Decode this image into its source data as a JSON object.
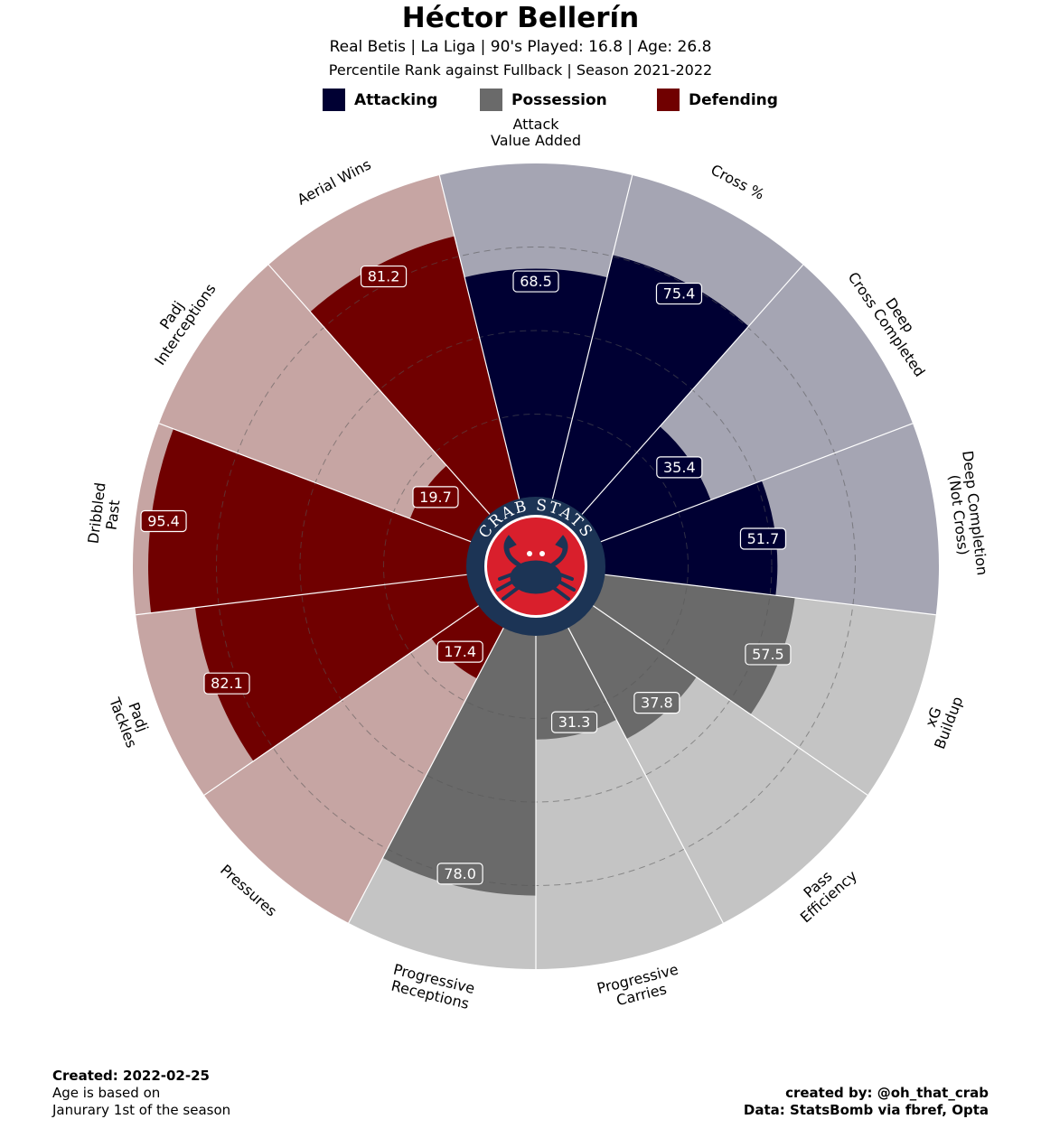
{
  "header": {
    "title": "Héctor Bellerín",
    "subtitle1": "Real Betis  | La Liga | 90's Played: 16.8 | Age: 26.8",
    "subtitle2": "Percentile Rank against Fullback  | Season 2021-2022"
  },
  "legend": [
    {
      "label": "Attacking",
      "color": "#000033"
    },
    {
      "label": "Possession",
      "color": "#6a6a6a"
    },
    {
      "label": "Defending",
      "color": "#700000"
    }
  ],
  "logo": {
    "text": "CRAB STATS",
    "icon": "crab-icon"
  },
  "chart_data": {
    "type": "pizza",
    "rlim": [
      0,
      100
    ],
    "grid": "dashed rings at 25, 50, 75",
    "categories": [
      {
        "label": [
          "Attack",
          "Value Added"
        ],
        "value": 68.5,
        "group": "Attacking"
      },
      {
        "label": [
          "Cross %"
        ],
        "value": 75.4,
        "group": "Attacking"
      },
      {
        "label": [
          "Deep",
          "Cross Completed"
        ],
        "value": 35.4,
        "group": "Attacking"
      },
      {
        "label": [
          "Deep Completion",
          "(Not Cross)"
        ],
        "value": 51.7,
        "group": "Attacking"
      },
      {
        "label": [
          "xG",
          "Buildup"
        ],
        "value": 57.5,
        "group": "Possession"
      },
      {
        "label": [
          "Pass",
          "Efficiency"
        ],
        "value": 37.8,
        "group": "Possession"
      },
      {
        "label": [
          "Progressive",
          "Carries"
        ],
        "value": 31.3,
        "group": "Possession"
      },
      {
        "label": [
          "Progressive",
          "Receptions"
        ],
        "value": 78.0,
        "group": "Possession"
      },
      {
        "label": [
          "Pressures"
        ],
        "value": 17.4,
        "group": "Defending"
      },
      {
        "label": [
          "Padj",
          "Tackles"
        ],
        "value": 82.1,
        "group": "Defending"
      },
      {
        "label": [
          "Dribbled",
          "Past"
        ],
        "value": 95.4,
        "group": "Defending"
      },
      {
        "label": [
          "Padj",
          "Interceptions"
        ],
        "value": 19.7,
        "group": "Defending"
      },
      {
        "label": [
          "Aerial Wins"
        ],
        "value": 81.2,
        "group": "Defending"
      }
    ],
    "colors": {
      "Attacking": {
        "fill": "#000033",
        "bg": "#a5a5b3"
      },
      "Possession": {
        "fill": "#6a6a6a",
        "bg": "#c4c4c4"
      },
      "Defending": {
        "fill": "#700000",
        "bg": "#c6a5a3"
      }
    }
  },
  "footer": {
    "created": "Created: 2022-02-25",
    "note_line1": "Age is based on",
    "note_line2": "Janurary 1st of the season",
    "credit": "created by: @oh_that_crab",
    "source": "Data: StatsBomb via fbref, Opta"
  }
}
